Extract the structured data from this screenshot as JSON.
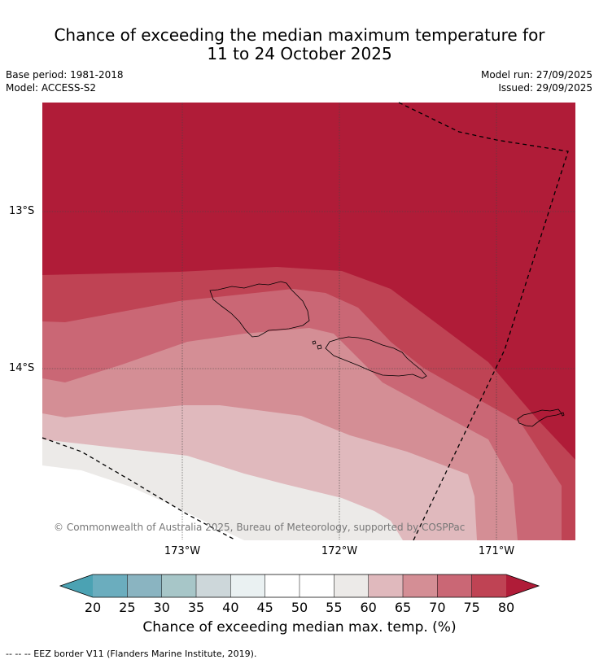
{
  "title": {
    "line1": "Chance of exceeding the median maximum temperature for",
    "line2": "11 to 24 October 2025"
  },
  "meta": {
    "base_period": "Base period: 1981-2018",
    "model": "Model: ACCESS-S2",
    "model_run": "Model run: 27/09/2025",
    "issued": "Issued: 29/09/2025"
  },
  "map": {
    "lat_labels": [
      "13°S",
      "14°S"
    ],
    "lon_labels": [
      "173°W",
      "172°W",
      "171°W"
    ],
    "copyright": "© Commonwealth of Australia 2025, Bureau of Meteorology, supported by COSPPac"
  },
  "colorbar": {
    "ticks": [
      "20",
      "25",
      "30",
      "35",
      "40",
      "45",
      "50",
      "55",
      "60",
      "65",
      "70",
      "75",
      "80"
    ],
    "colors": [
      "#4ba2b3",
      "#6badbe",
      "#8ab4c1",
      "#a7c6c8",
      "#cdd7da",
      "#eaf1f2",
      "#ffffff",
      "#ffffff",
      "#eceae8",
      "#e0b9bd",
      "#d48e95",
      "#ca6775",
      "#bf4354",
      "#b01c38"
    ],
    "label": "Chance of exceeding median max. temp. (%)"
  },
  "footer": "--  --  -- EEZ border V11 (Flanders Marine Institute, 2019)."
}
